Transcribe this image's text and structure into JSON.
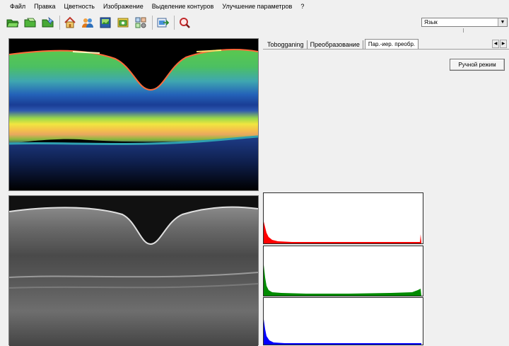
{
  "menu": [
    "Файл",
    "Правка",
    "Цветность",
    "Изображение",
    "Выделение контуров",
    "Улучшение параметров",
    "?"
  ],
  "toolbar": {
    "icons": [
      "open-folder-icon",
      "folder-icon",
      "folder-link-icon",
      "home-icon",
      "users-icon",
      "image-book-icon",
      "layers-icon",
      "settings-icon",
      "export-icon",
      "zoom-icon"
    ]
  },
  "language": {
    "value": "Язык",
    "arrow": "▼"
  },
  "tabs": {
    "items": [
      "Tobogganing",
      "Преобразование",
      "Пар.-иер. преобр."
    ],
    "active_index": 2,
    "nav_left": "◀",
    "nav_right": "▶"
  },
  "manual_mode_button": "Ручной режим",
  "histogram_colors": {
    "red": "#ff0000",
    "green": "#008a00",
    "blue": "#0000ff"
  }
}
